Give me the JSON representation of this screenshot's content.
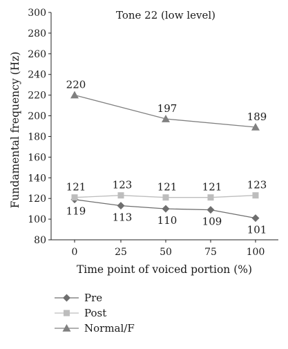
{
  "chart_data": {
    "type": "line",
    "title": "Tone 22 (low level)",
    "xlabel": "Time point of voiced portion (%)",
    "ylabel": "Fundamental frequency (Hz)",
    "x": [
      0,
      25,
      50,
      75,
      100
    ],
    "xticks": [
      "0",
      "25",
      "50",
      "75",
      "100"
    ],
    "ylim": [
      80,
      300
    ],
    "yticks": [
      "80",
      "100",
      "120",
      "140",
      "160",
      "180",
      "200",
      "220",
      "240",
      "260",
      "280",
      "300"
    ],
    "grid": false,
    "legend_position": "bottom-left",
    "series": [
      {
        "name": "Pre",
        "marker": "diamond",
        "color": "#6e6e6e",
        "values": [
          119,
          113,
          110,
          109,
          101
        ],
        "labels": [
          "119",
          "113",
          "110",
          "109",
          "101"
        ],
        "label_pos": "below"
      },
      {
        "name": "Post",
        "marker": "square",
        "color": "#bdbdbd",
        "values": [
          121,
          123,
          121,
          121,
          123
        ],
        "labels": [
          "121",
          "123",
          "121",
          "121",
          "123"
        ],
        "label_pos": "above"
      },
      {
        "name": "Normal/F",
        "marker": "triangle",
        "color": "#808080",
        "values": [
          220,
          197,
          189
        ],
        "x": [
          0,
          50,
          100
        ],
        "labels": [
          "220",
          "197",
          "189"
        ],
        "label_pos": "above"
      }
    ]
  }
}
